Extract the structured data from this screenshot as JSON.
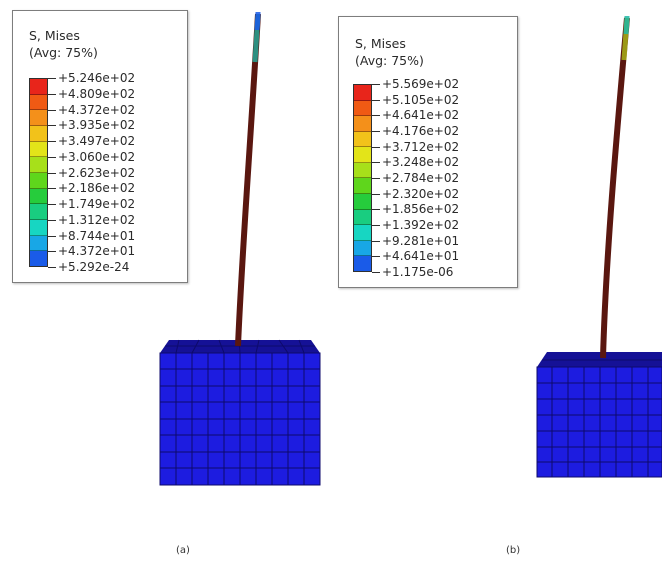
{
  "figures": [
    {
      "caption": "(a)",
      "legend": {
        "title_line1": "S, Mises",
        "title_line2": "(Avg: 75%)",
        "ticks": [
          "+5.246e+02",
          "+4.809e+02",
          "+4.372e+02",
          "+3.935e+02",
          "+3.497e+02",
          "+3.060e+02",
          "+2.623e+02",
          "+2.186e+02",
          "+1.749e+02",
          "+1.312e+02",
          "+8.744e+01",
          "+4.372e+01",
          "+5.292e-24"
        ]
      }
    },
    {
      "caption": "(b)",
      "legend": {
        "title_line1": "S, Mises",
        "title_line2": "(Avg: 75%)",
        "ticks": [
          "+5.569e+02",
          "+5.105e+02",
          "+4.641e+02",
          "+4.176e+02",
          "+3.712e+02",
          "+3.248e+02",
          "+2.784e+02",
          "+2.320e+02",
          "+1.856e+02",
          "+1.392e+02",
          "+9.281e+01",
          "+4.641e+01",
          "+1.175e-06"
        ]
      }
    }
  ],
  "colors": {
    "scale_top_to_bottom": [
      "#e8251b",
      "#f05a14",
      "#f4901a",
      "#f2c21a",
      "#e3e419",
      "#a7e01a",
      "#5fd61c",
      "#26cc3c",
      "#19cd80",
      "#17d6c2",
      "#18a7e6",
      "#1a5be8",
      "#1a16d6"
    ],
    "block": "#1d1ce0",
    "block_top": "#151196",
    "block_grid": "#0d0a6b",
    "rod": "#5a1710"
  }
}
